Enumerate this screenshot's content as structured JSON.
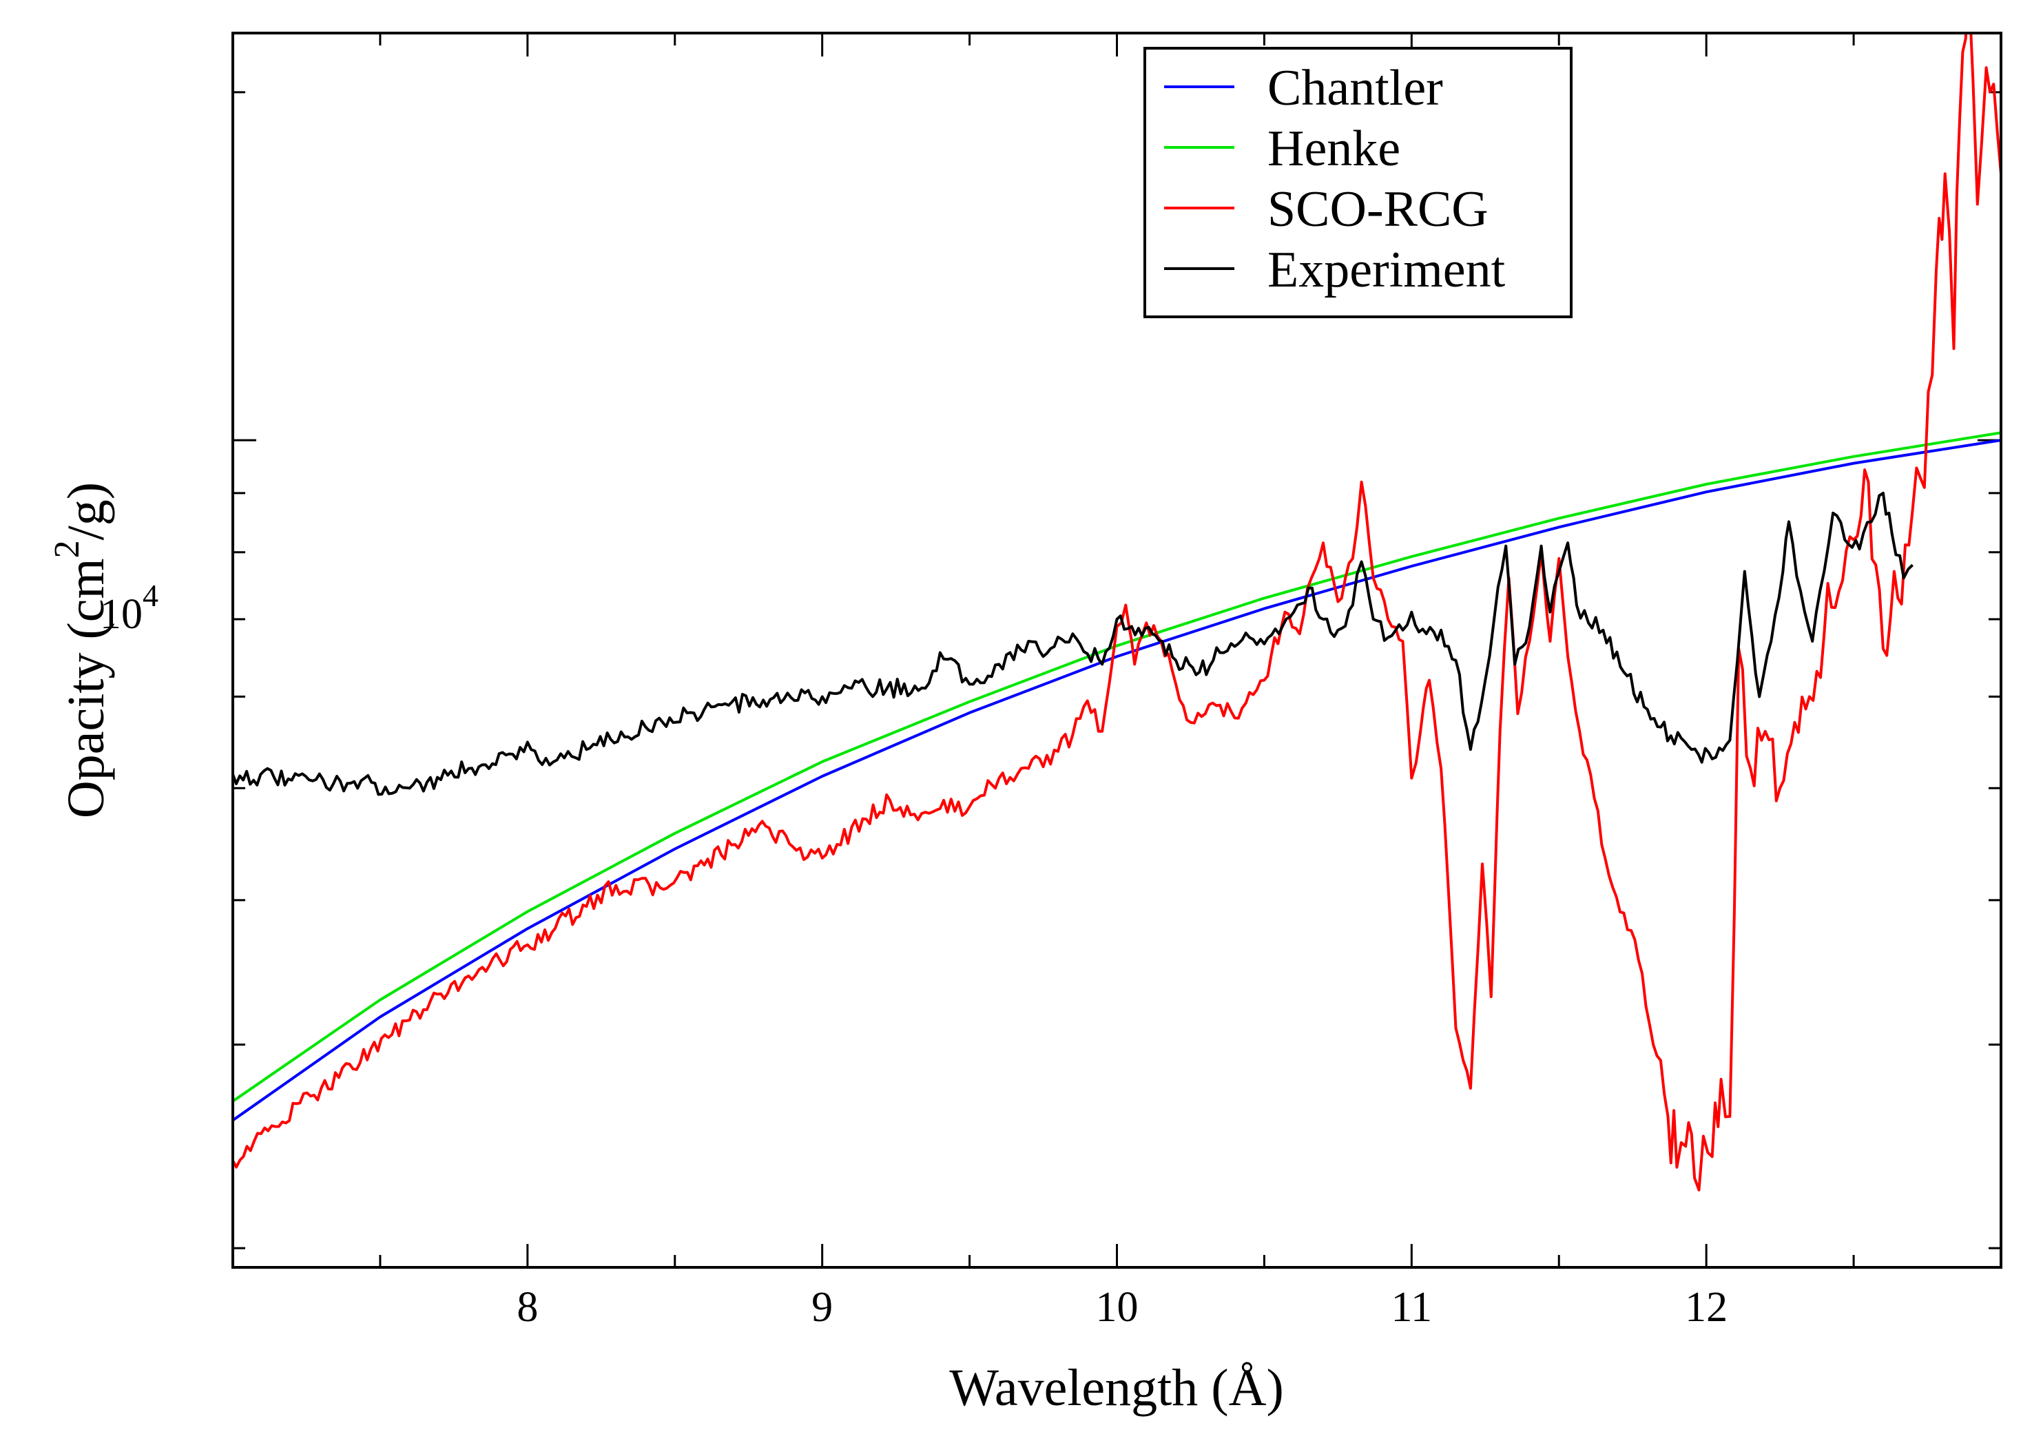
{
  "chart_data": {
    "type": "line",
    "title": "",
    "xlabel": "Wavelength (Å)",
    "ylabel_main": "Opacity (cm",
    "ylabel_sup": "2",
    "ylabel_tail": "/g)",
    "xlim": [
      7.0,
      13.0
    ],
    "ylim": [
      1925,
      22500
    ],
    "y_scale": "log",
    "y_labeled_tick": {
      "base": "10",
      "exp": "4",
      "value": 10000
    },
    "x_ticks": [
      8,
      9,
      10,
      11,
      12
    ],
    "x_tick_labels": [
      "8",
      "9",
      "10",
      "11",
      "12"
    ],
    "legend": {
      "position": "top-right",
      "entries": [
        {
          "name": "Chantler",
          "color": "#0000ff"
        },
        {
          "name": "Henke",
          "color": "#00e600"
        },
        {
          "name": "SCO-RCG",
          "color": "#ff0000"
        },
        {
          "name": "Experiment",
          "color": "#000000"
        }
      ]
    },
    "series": [
      {
        "name": "Chantler",
        "color": "#0000ff",
        "x": [
          7.0,
          7.5,
          8.0,
          8.5,
          9.0,
          9.5,
          10.0,
          10.5,
          11.0,
          11.5,
          12.0,
          12.5,
          13.0
        ],
        "y": [
          2580,
          3170,
          3780,
          4430,
          5120,
          5810,
          6500,
          7150,
          7780,
          8410,
          9020,
          9550,
          10000
        ]
      },
      {
        "name": "Henke",
        "color": "#00e600",
        "x": [
          7.0,
          7.5,
          8.0,
          8.5,
          9.0,
          9.5,
          10.0,
          10.5,
          11.0,
          11.5,
          12.0,
          12.5,
          13.0
        ],
        "y": [
          2680,
          3280,
          3910,
          4570,
          5270,
          5940,
          6640,
          7300,
          7930,
          8560,
          9160,
          9680,
          10150
        ]
      },
      {
        "name": "SCO-RCG",
        "color": "#ff0000",
        "x": [
          7.0,
          7.3,
          7.6,
          7.8,
          8.0,
          8.2,
          8.3,
          8.45,
          8.6,
          8.75,
          8.82,
          8.9,
          9.0,
          9.05,
          9.15,
          9.23,
          9.3,
          9.4,
          9.5,
          9.6,
          9.7,
          9.8,
          9.85,
          9.9,
          9.95,
          10.0,
          10.03,
          10.06,
          10.1,
          10.15,
          10.2,
          10.25,
          10.3,
          10.35,
          10.4,
          10.45,
          10.5,
          10.57,
          10.62,
          10.66,
          10.7,
          10.75,
          10.8,
          10.83,
          10.87,
          10.92,
          10.97,
          11.0,
          11.03,
          11.06,
          11.1,
          11.15,
          11.2,
          11.24,
          11.27,
          11.3,
          11.33,
          11.36,
          11.4,
          11.44,
          11.47,
          11.5,
          11.53,
          11.57,
          11.62,
          11.67,
          11.72,
          11.77,
          11.82,
          11.87,
          11.9,
          11.93,
          11.96,
          11.99,
          12.02,
          12.05,
          12.08,
          12.11,
          12.15,
          12.2,
          12.25,
          12.3,
          12.35,
          12.4,
          12.45,
          12.5,
          12.55,
          12.6,
          12.65,
          12.7,
          12.74,
          12.78,
          12.81,
          12.84,
          12.86,
          12.89,
          12.92,
          12.95,
          13.0
        ],
        "y": [
          2380,
          2750,
          3150,
          3440,
          3660,
          3950,
          4120,
          4100,
          4290,
          4550,
          4620,
          4450,
          4350,
          4470,
          4700,
          4880,
          4740,
          4800,
          4820,
          5100,
          5200,
          5380,
          5560,
          5950,
          5600,
          6900,
          7200,
          6400,
          6950,
          6700,
          6150,
          5700,
          5800,
          5900,
          5750,
          6050,
          6200,
          7100,
          6800,
          7600,
          8150,
          7250,
          7900,
          9200,
          7600,
          7000,
          6700,
          5100,
          5600,
          6200,
          5200,
          3100,
          2750,
          4300,
          3300,
          5600,
          7600,
          5800,
          6700,
          8000,
          6700,
          7900,
          6500,
          5600,
          4900,
          4200,
          3900,
          3550,
          3000,
          2600,
          2350,
          2450,
          2300,
          2500,
          2400,
          2800,
          2600,
          6600,
          5200,
          5600,
          5000,
          5700,
          6000,
          6800,
          7400,
          8200,
          9200,
          6600,
          7300,
          8700,
          9100,
          14000,
          17000,
          12000,
          19000,
          25000,
          16000,
          21000,
          17000
        ]
      },
      {
        "name": "Experiment",
        "color": "#000000",
        "x": [
          7.0,
          7.2,
          7.4,
          7.6,
          7.8,
          7.95,
          8.0,
          8.05,
          8.2,
          8.4,
          8.6,
          8.8,
          9.0,
          9.1,
          9.35,
          9.4,
          9.5,
          9.6,
          9.7,
          9.75,
          9.85,
          9.95,
          10.0,
          10.05,
          10.12,
          10.2,
          10.28,
          10.35,
          10.45,
          10.55,
          10.6,
          10.65,
          10.7,
          10.75,
          10.8,
          10.83,
          10.87,
          10.92,
          10.97,
          11.0,
          11.05,
          11.1,
          11.15,
          11.2,
          11.25,
          11.28,
          11.32,
          11.35,
          11.4,
          11.44,
          11.47,
          11.5,
          11.53,
          11.56,
          11.6,
          11.65,
          11.72,
          11.8,
          11.88,
          11.95,
          12.02,
          12.08,
          12.13,
          12.18,
          12.22,
          12.26,
          12.28,
          12.32,
          12.36,
          12.4,
          12.43,
          12.47,
          12.52,
          12.56,
          12.6,
          12.63,
          12.67,
          12.7
        ],
        "y": [
          5140,
          5080,
          5050,
          5000,
          5200,
          5350,
          5480,
          5240,
          5400,
          5650,
          5850,
          5960,
          6000,
          6100,
          6100,
          6550,
          6150,
          6400,
          6700,
          6500,
          6800,
          6400,
          7000,
          6900,
          6800,
          6450,
          6300,
          6550,
          6750,
          6800,
          7100,
          7450,
          7000,
          6850,
          7200,
          7850,
          7000,
          6750,
          6850,
          7100,
          6800,
          6850,
          6450,
          5400,
          6200,
          7000,
          8100,
          6400,
          6900,
          8100,
          7100,
          7700,
          8150,
          7200,
          6950,
          6850,
          6300,
          5850,
          5550,
          5400,
          5300,
          5500,
          7700,
          6000,
          6700,
          7700,
          8500,
          7400,
          6700,
          7700,
          8650,
          8200,
          8050,
          8500,
          9000,
          8300,
          7600,
          7800
        ]
      }
    ]
  }
}
